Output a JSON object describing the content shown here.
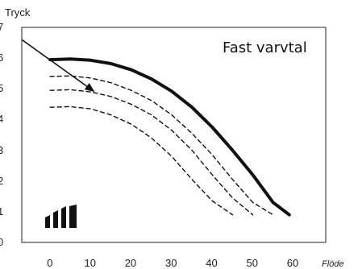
{
  "chart_data": {
    "type": "line",
    "title": "",
    "ylabel": "Tryck",
    "xlabel": "Flöde",
    "annotation": "Fast varvtal",
    "xlim": [
      -7,
      68
    ],
    "ylim": [
      0,
      7
    ],
    "x_ticks": [
      "0",
      "10",
      "20",
      "30",
      "40",
      "50",
      "60"
    ],
    "y_ticks": [
      "0",
      "1",
      "2",
      "3",
      "4",
      "5",
      "6",
      "7"
    ],
    "x_tick_values": [
      0,
      10,
      20,
      30,
      40,
      50,
      60
    ],
    "y_tick_values": [
      0,
      1,
      2,
      3,
      4,
      5,
      6,
      7
    ],
    "grid": false,
    "legend": "none",
    "series": [
      {
        "style": "solid",
        "x": [
          0,
          5,
          10,
          15,
          20,
          25,
          30,
          35,
          40,
          45,
          50,
          55,
          59
        ],
        "y": [
          5.95,
          5.97,
          5.93,
          5.82,
          5.62,
          5.32,
          4.92,
          4.4,
          3.75,
          3.0,
          2.2,
          1.3,
          0.9
        ]
      },
      {
        "style": "dashed",
        "x": [
          0,
          5,
          10,
          15,
          20,
          25,
          30,
          35,
          40,
          45,
          50,
          55
        ],
        "y": [
          5.4,
          5.42,
          5.35,
          5.2,
          4.95,
          4.62,
          4.15,
          3.55,
          2.85,
          2.05,
          1.3,
          0.9
        ]
      },
      {
        "style": "dashed",
        "x": [
          0,
          5,
          10,
          15,
          20,
          25,
          30,
          35,
          40,
          45,
          50
        ],
        "y": [
          4.95,
          4.97,
          4.9,
          4.75,
          4.5,
          4.15,
          3.65,
          3.0,
          2.2,
          1.45,
          0.9
        ]
      },
      {
        "style": "dashed",
        "x": [
          0,
          5,
          10,
          15,
          20,
          25,
          30,
          35,
          40,
          45
        ],
        "y": [
          4.4,
          4.42,
          4.35,
          4.15,
          3.85,
          3.4,
          2.8,
          2.05,
          1.35,
          0.9
        ]
      }
    ],
    "arrow": {
      "from": [
        -7,
        6.6
      ],
      "to": [
        11,
        4.9
      ]
    }
  },
  "colors": {
    "line": "#111111",
    "axis": "#222222",
    "text": "#222222"
  },
  "icons": {
    "corner": "signal-bars-icon"
  }
}
